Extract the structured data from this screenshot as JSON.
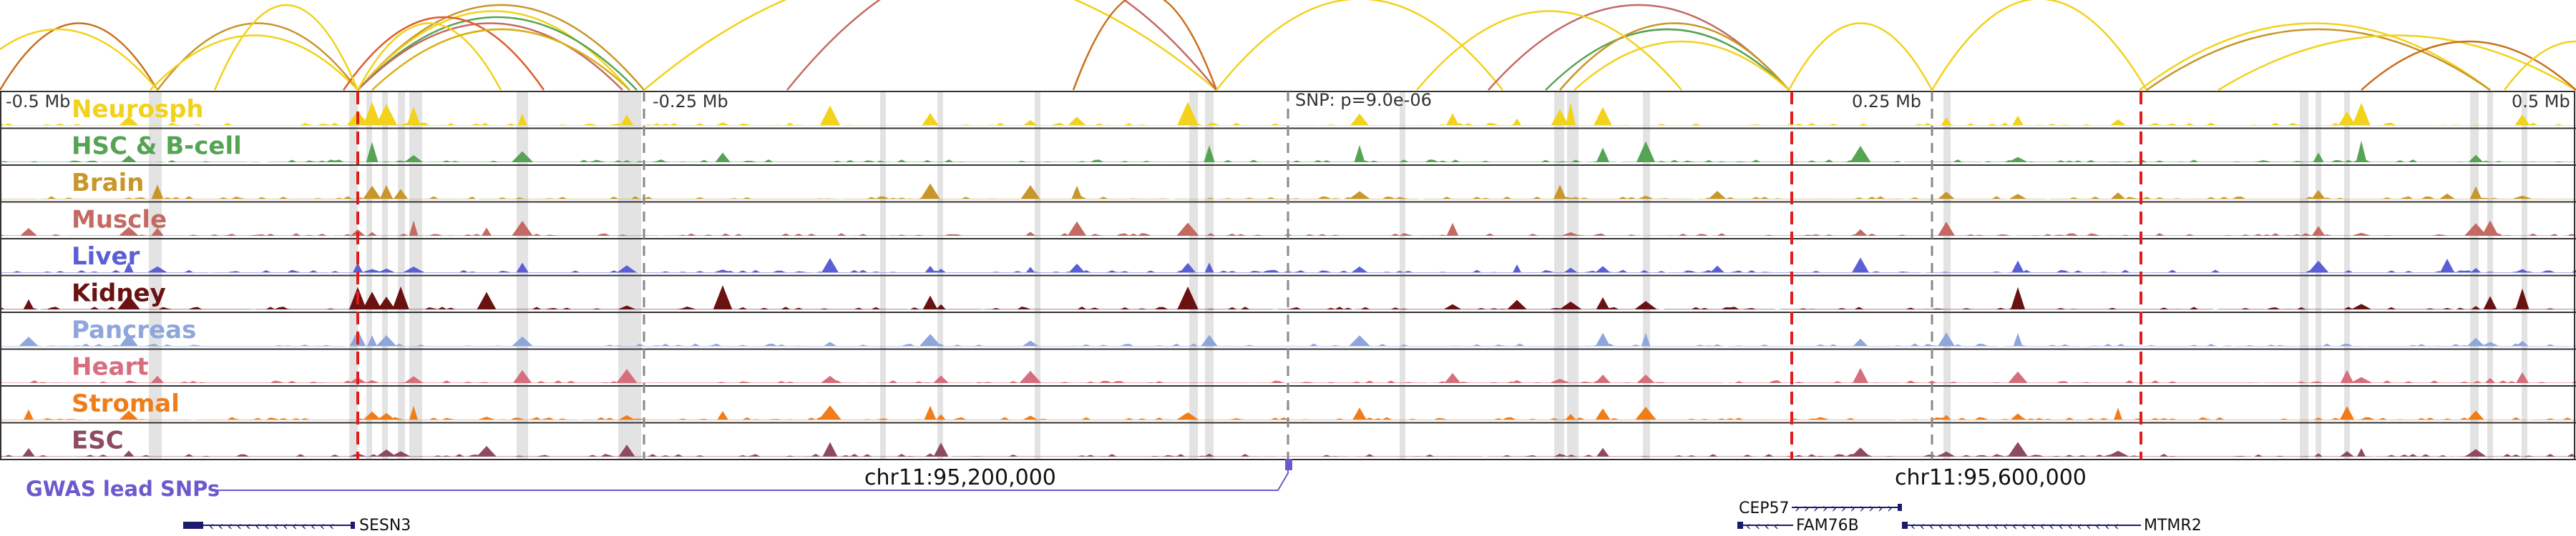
{
  "tracks": [
    {
      "name": "Neurosph",
      "color": "#f2d21b"
    },
    {
      "name": "HSC & B-cell",
      "color": "#55a453"
    },
    {
      "name": "Brain",
      "color": "#c8962a"
    },
    {
      "name": "Muscle",
      "color": "#c46a62"
    },
    {
      "name": "Liver",
      "color": "#5b5fd6"
    },
    {
      "name": "Kidney",
      "color": "#6a1111"
    },
    {
      "name": "Pancreas",
      "color": "#8ea6dc"
    },
    {
      "name": "Heart",
      "color": "#d66f7d"
    },
    {
      "name": "Stromal",
      "color": "#f07d1a"
    },
    {
      "name": "ESC",
      "color": "#8e4a62"
    }
  ],
  "axis": {
    "left_label": "-0.5 Mb",
    "mid_left_label": "-0.25 Mb",
    "mid_right_label": "0.25 Mb",
    "right_label": "0.5 Mb",
    "snp_label": "SNP: p=9.0e-06"
  },
  "coordinates": [
    "chr11:95,200,000",
    "chr11:95,600,000"
  ],
  "gwas_label": "GWAS lead SNPs",
  "genes": [
    "SESN3",
    "CEP57",
    "FAM76B",
    "MTMR2"
  ],
  "colors": {
    "boundary_line": "#e21b1b",
    "snp_line": "#6a5acd",
    "gene": "#1a1a6e",
    "highlight": "#d9d9d9"
  }
}
